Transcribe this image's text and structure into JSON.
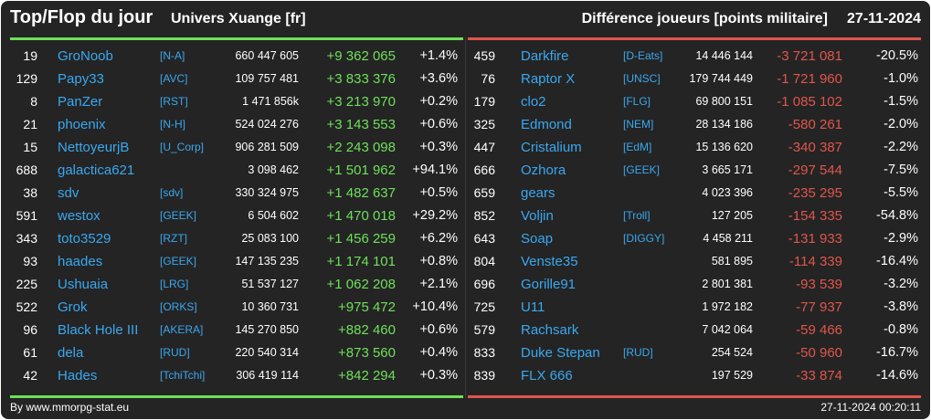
{
  "header": {
    "title": "Top/Flop du jour",
    "universe": "Univers Xuange [fr]",
    "metric": "Différence joueurs [points militaire]",
    "date": "27-11-2024"
  },
  "colors": {
    "background": "#242424",
    "top_accent": "#6ee05a",
    "flop_accent": "#e0564c",
    "link": "#3aa8f0"
  },
  "top": [
    {
      "rank": "19",
      "name": "GroNoob",
      "ally": "[N-A]",
      "points": "660 447 605",
      "diff": "+9 362 065",
      "pct": "+1.4%"
    },
    {
      "rank": "129",
      "name": "Papy33",
      "ally": "[AVC]",
      "points": "109 757 481",
      "diff": "+3 833 376",
      "pct": "+3.6%"
    },
    {
      "rank": "8",
      "name": "PanZer",
      "ally": "[RST]",
      "points": "1 471 856k",
      "diff": "+3 213 970",
      "pct": "+0.2%"
    },
    {
      "rank": "21",
      "name": "phoenix",
      "ally": "[N-H]",
      "points": "524 024 276",
      "diff": "+3 143 553",
      "pct": "+0.6%"
    },
    {
      "rank": "15",
      "name": "NettoyeurjB",
      "ally": "[U_Corp]",
      "points": "906 281 509",
      "diff": "+2 243 098",
      "pct": "+0.3%"
    },
    {
      "rank": "688",
      "name": "galactica621",
      "ally": "",
      "points": "3 098 462",
      "diff": "+1 501 962",
      "pct": "+94.1%"
    },
    {
      "rank": "38",
      "name": "sdv",
      "ally": "[sdv]",
      "points": "330 324 975",
      "diff": "+1 482 637",
      "pct": "+0.5%"
    },
    {
      "rank": "591",
      "name": "westox",
      "ally": "[GEEK]",
      "points": "6 504 602",
      "diff": "+1 470 018",
      "pct": "+29.2%"
    },
    {
      "rank": "343",
      "name": "toto3529",
      "ally": "[RZT]",
      "points": "25 083 100",
      "diff": "+1 456 259",
      "pct": "+6.2%"
    },
    {
      "rank": "93",
      "name": "haades",
      "ally": "[GEEK]",
      "points": "147 135 235",
      "diff": "+1 174 101",
      "pct": "+0.8%"
    },
    {
      "rank": "225",
      "name": "Ushuaia",
      "ally": "[LRG]",
      "points": "51 537 127",
      "diff": "+1 062 208",
      "pct": "+2.1%"
    },
    {
      "rank": "522",
      "name": "Grok",
      "ally": "[ORKS]",
      "points": "10 360 731",
      "diff": "+975 472",
      "pct": "+10.4%"
    },
    {
      "rank": "96",
      "name": "Black Hole III",
      "ally": "[AKERA]",
      "points": "145 270 850",
      "diff": "+882 460",
      "pct": "+0.6%"
    },
    {
      "rank": "61",
      "name": "dela",
      "ally": "[RUD]",
      "points": "220 540 314",
      "diff": "+873 560",
      "pct": "+0.4%"
    },
    {
      "rank": "42",
      "name": "Hades",
      "ally": "[TchiTchi]",
      "points": "306 419 114",
      "diff": "+842 294",
      "pct": "+0.3%"
    }
  ],
  "flop": [
    {
      "rank": "459",
      "name": "Darkfire",
      "ally": "[D-Eats]",
      "points": "14 446 144",
      "diff": "-3 721 081",
      "pct": "-20.5%"
    },
    {
      "rank": "76",
      "name": "Raptor X",
      "ally": "[UNSC]",
      "points": "179 744 449",
      "diff": "-1 721 960",
      "pct": "-1.0%"
    },
    {
      "rank": "179",
      "name": "clo2",
      "ally": "[FLG]",
      "points": "69 800 151",
      "diff": "-1 085 102",
      "pct": "-1.5%"
    },
    {
      "rank": "325",
      "name": "Edmond",
      "ally": "[NEM]",
      "points": "28 134 186",
      "diff": "-580 261",
      "pct": "-2.0%"
    },
    {
      "rank": "447",
      "name": "Cristalium",
      "ally": "[EdM]",
      "points": "15 136 620",
      "diff": "-340 387",
      "pct": "-2.2%"
    },
    {
      "rank": "666",
      "name": "Ozhora",
      "ally": "[GEEK]",
      "points": "3 665 171",
      "diff": "-297 544",
      "pct": "-7.5%"
    },
    {
      "rank": "659",
      "name": "gears",
      "ally": "",
      "points": "4 023 396",
      "diff": "-235 295",
      "pct": "-5.5%"
    },
    {
      "rank": "852",
      "name": "Voljin",
      "ally": "[Troll]",
      "points": "127 205",
      "diff": "-154 335",
      "pct": "-54.8%"
    },
    {
      "rank": "643",
      "name": "Soap",
      "ally": "[DIGGY]",
      "points": "4 458 211",
      "diff": "-131 933",
      "pct": "-2.9%"
    },
    {
      "rank": "804",
      "name": "Venste35",
      "ally": "",
      "points": "581 895",
      "diff": "-114 339",
      "pct": "-16.4%"
    },
    {
      "rank": "696",
      "name": "Gorille91",
      "ally": "",
      "points": "2 801 381",
      "diff": "-93 539",
      "pct": "-3.2%"
    },
    {
      "rank": "725",
      "name": "U11",
      "ally": "",
      "points": "1 972 182",
      "diff": "-77 937",
      "pct": "-3.8%"
    },
    {
      "rank": "579",
      "name": "Rachsark",
      "ally": "",
      "points": "7 042 064",
      "diff": "-59 466",
      "pct": "-0.8%"
    },
    {
      "rank": "833",
      "name": "Duke Stepan",
      "ally": "[RUD]",
      "points": "254 524",
      "diff": "-50 960",
      "pct": "-16.7%"
    },
    {
      "rank": "839",
      "name": "FLX 666",
      "ally": "",
      "points": "197 529",
      "diff": "-33 874",
      "pct": "-14.6%"
    }
  ],
  "footer": {
    "credit": "By www.mmorpg-stat.eu",
    "timestamp": "27-11-2024 00:20:11"
  }
}
